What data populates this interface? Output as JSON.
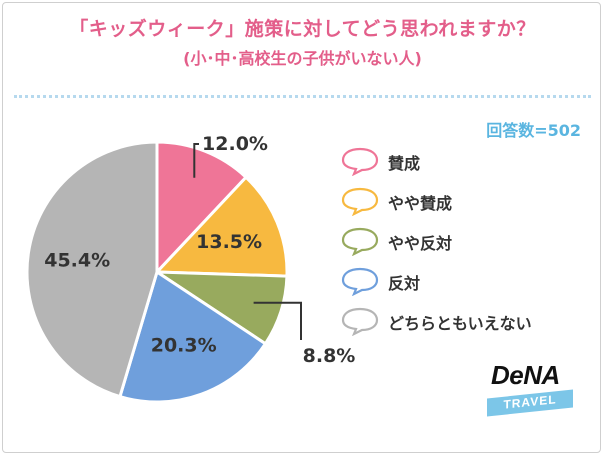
{
  "header": {
    "title": "「キッズウィーク」施策に対してどう思われますか？",
    "subtitle": "(小･中･高校生の子供がいない人)",
    "respondents": "回答数=502"
  },
  "chart_data": {
    "type": "pie",
    "title": "「キッズウィーク」施策に対してどう思われますか？",
    "subtitle": "(小･中･高校生の子供がいない人)",
    "n_label": "回答数=502",
    "start_angle": "12 o'clock",
    "direction": "clockwise",
    "legend_position": "right",
    "slices": [
      {
        "label": "賛成",
        "value": 12.0,
        "display": "12.0%",
        "color": "#ef7597",
        "label_color": "#333333"
      },
      {
        "label": "やや賛成",
        "value": 13.5,
        "display": "13.5%",
        "color": "#f7b940",
        "label_color": "#333333"
      },
      {
        "label": "やや反対",
        "value": 8.8,
        "display": "8.8%",
        "color": "#98aa5e",
        "label_color": "#333333"
      },
      {
        "label": "反対",
        "value": 20.3,
        "display": "20.3%",
        "color": "#6f9fdc",
        "label_color": "#333333"
      },
      {
        "label": "どちらともいえない",
        "value": 45.4,
        "display": "45.4%",
        "color": "#b5b5b5",
        "label_color": "#333333"
      }
    ]
  },
  "brand": {
    "name": "DeNA",
    "sub": "TRAVEL"
  }
}
